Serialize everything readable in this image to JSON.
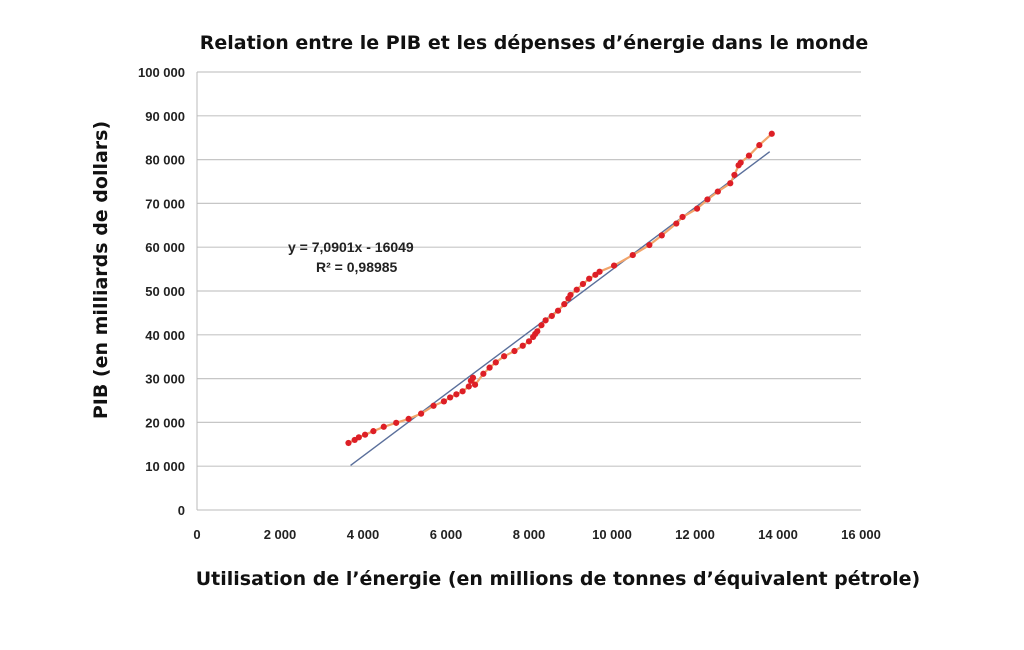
{
  "chart_data": {
    "type": "scatter",
    "title": "Relation entre le  PIB et les dépenses d’énergie dans le monde",
    "xlabel": "Utilisation de l’énergie (en millions de tonnes d’équivalent pétrole)",
    "ylabel": "PIB (en milliards de dollars)",
    "xlim": [
      0,
      16000
    ],
    "ylim": [
      0,
      100000
    ],
    "x_ticks": [
      0,
      2000,
      4000,
      6000,
      8000,
      10000,
      12000,
      14000,
      16000
    ],
    "x_tick_labels": [
      "0",
      "2 000",
      "4 000",
      "6 000",
      "8 000",
      "10 000",
      "12 000",
      "14 000",
      "16 000"
    ],
    "y_ticks": [
      0,
      10000,
      20000,
      30000,
      40000,
      50000,
      60000,
      70000,
      80000,
      90000,
      100000
    ],
    "y_tick_labels": [
      "0",
      "10 000",
      "20 000",
      "30 000",
      "40 000",
      "50 000",
      "60 000",
      "70 000",
      "80 000",
      "90 000",
      "100 000"
    ],
    "grid": "horizontal",
    "annotations": {
      "equation": "y = 7,0901x - 16049",
      "r_squared": "R² = 0,98985"
    },
    "trendline": {
      "slope": 7.0901,
      "intercept": -16049,
      "x_range": [
        3700,
        13800
      ],
      "color": "#5a6f9b"
    },
    "series": [
      {
        "color": "#dd1f26",
        "line_color": "#f2a46a",
        "x": [
          3650,
          3800,
          3900,
          4050,
          4250,
          4500,
          4800,
          5100,
          5400,
          5700,
          5950,
          6100,
          6250,
          6400,
          6550,
          6600,
          6650,
          6700,
          6900,
          7050,
          7200,
          7400,
          7650,
          7850,
          8000,
          8100,
          8150,
          8200,
          8300,
          8400,
          8550,
          8700,
          8850,
          8950,
          9000,
          9150,
          9300,
          9450,
          9600,
          9700,
          10050,
          10500,
          10900,
          11200,
          11550,
          11700,
          12050,
          12300,
          12550,
          12850,
          12950,
          13050,
          13100,
          13300,
          13550,
          13850
        ],
        "y": [
          15300,
          16000,
          16600,
          17200,
          18000,
          19000,
          19900,
          20800,
          22000,
          23800,
          24800,
          25700,
          26400,
          27100,
          28200,
          29500,
          30200,
          28600,
          31100,
          32500,
          33700,
          35100,
          36300,
          37500,
          38500,
          39500,
          40200,
          40800,
          42200,
          43300,
          44300,
          45500,
          47000,
          48300,
          49100,
          50300,
          51600,
          52800,
          53700,
          54400,
          55800,
          58200,
          60500,
          62700,
          65400,
          66900,
          68800,
          70900,
          72700,
          74600,
          76500,
          78700,
          79300,
          80900,
          83300,
          85900
        ]
      }
    ]
  }
}
